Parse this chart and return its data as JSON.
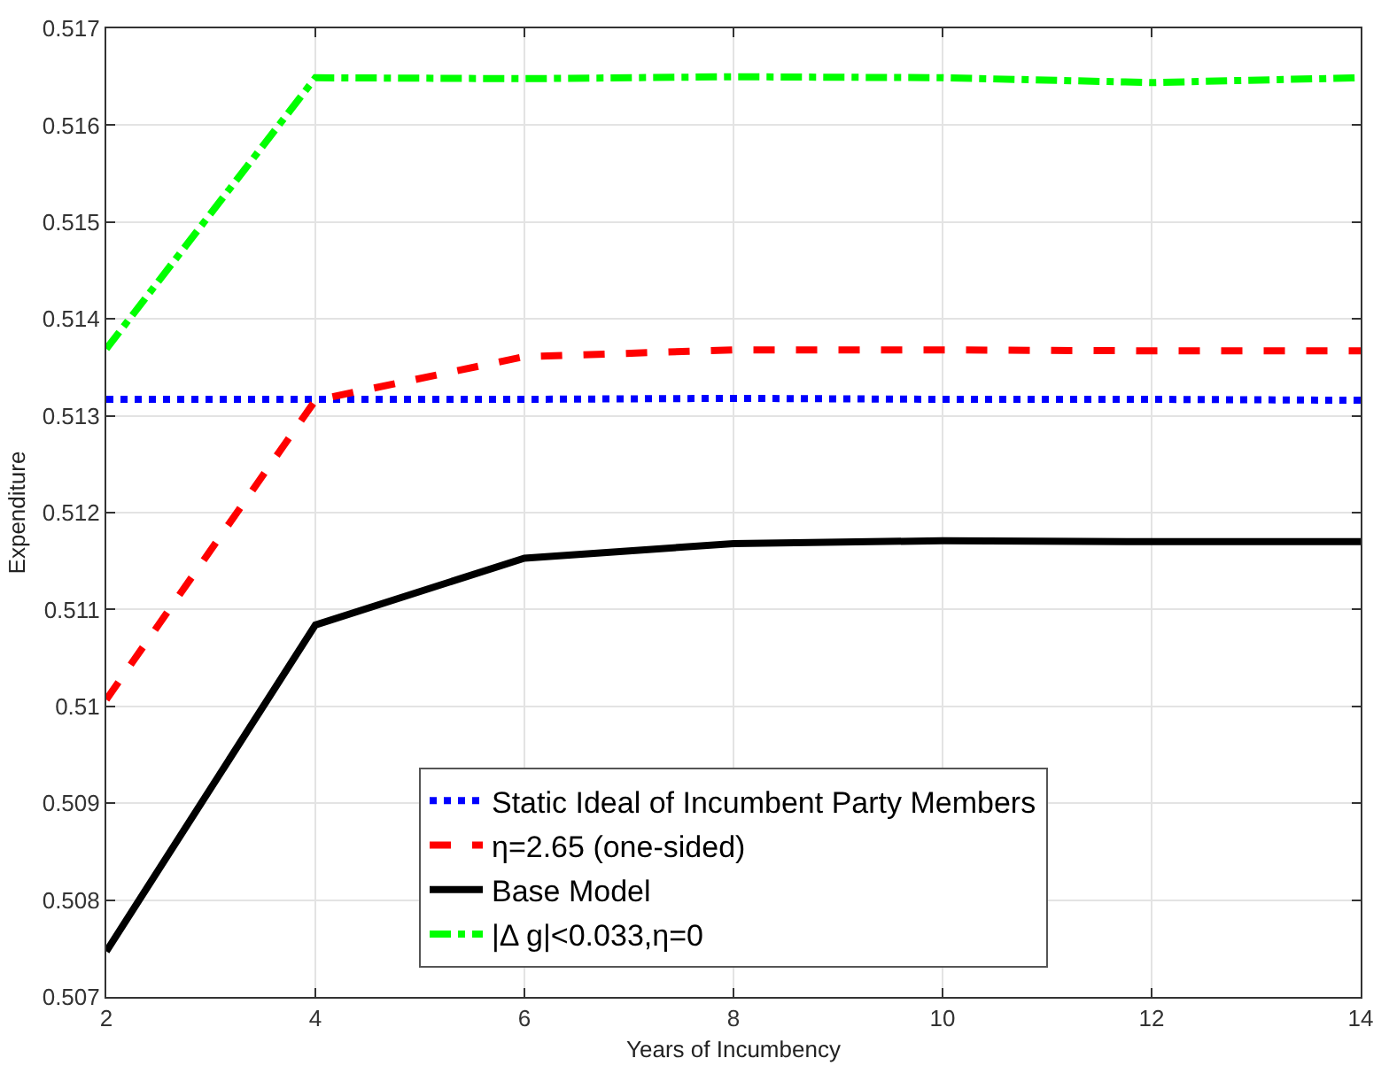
{
  "chart_data": {
    "type": "line",
    "xlabel": "Years of Incumbency",
    "ylabel": "Expenditure",
    "x": [
      2,
      4,
      6,
      8,
      10,
      12,
      14
    ],
    "series": [
      {
        "name": "Static Ideal of Incumbent Party Members",
        "color": "#0000ff",
        "line_style": "dotted",
        "values": [
          0.51317,
          0.51317,
          0.51317,
          0.51318,
          0.51317,
          0.51317,
          0.51316
        ]
      },
      {
        "name": "η=2.65 (one-sided)",
        "color": "#ff0000",
        "line_style": "dashed",
        "values": [
          0.51007,
          0.51316,
          0.51361,
          0.51368,
          0.51368,
          0.51367,
          0.51367
        ]
      },
      {
        "name": "Base Model",
        "color": "#000000",
        "line_style": "solid",
        "values": [
          0.50747,
          0.51084,
          0.51153,
          0.51168,
          0.51171,
          0.5117,
          0.5117
        ]
      },
      {
        "name": "|Δ g|<0.033,η=0",
        "color": "#00ff00",
        "line_style": "dashdot",
        "values": [
          0.51369,
          0.51649,
          0.51648,
          0.5165,
          0.51649,
          0.51644,
          0.51649
        ]
      }
    ],
    "xlim": [
      2,
      14
    ],
    "xticks": [
      2,
      4,
      6,
      8,
      10,
      12,
      14
    ],
    "ylim": [
      0.507,
      0.517
    ],
    "yticks": [
      {
        "value": 0.507,
        "label": "0.507"
      },
      {
        "value": 0.508,
        "label": "0.508"
      },
      {
        "value": 0.509,
        "label": "0.509"
      },
      {
        "value": 0.51,
        "label": "0.51"
      },
      {
        "value": 0.511,
        "label": "0.511"
      },
      {
        "value": 0.512,
        "label": "0.512"
      },
      {
        "value": 0.513,
        "label": "0.513"
      },
      {
        "value": 0.514,
        "label": "0.514"
      },
      {
        "value": 0.515,
        "label": "0.515"
      },
      {
        "value": 0.516,
        "label": "0.516"
      },
      {
        "value": 0.517,
        "label": "0.517"
      }
    ],
    "grid": true,
    "legend": "bottom",
    "marker": "none"
  }
}
